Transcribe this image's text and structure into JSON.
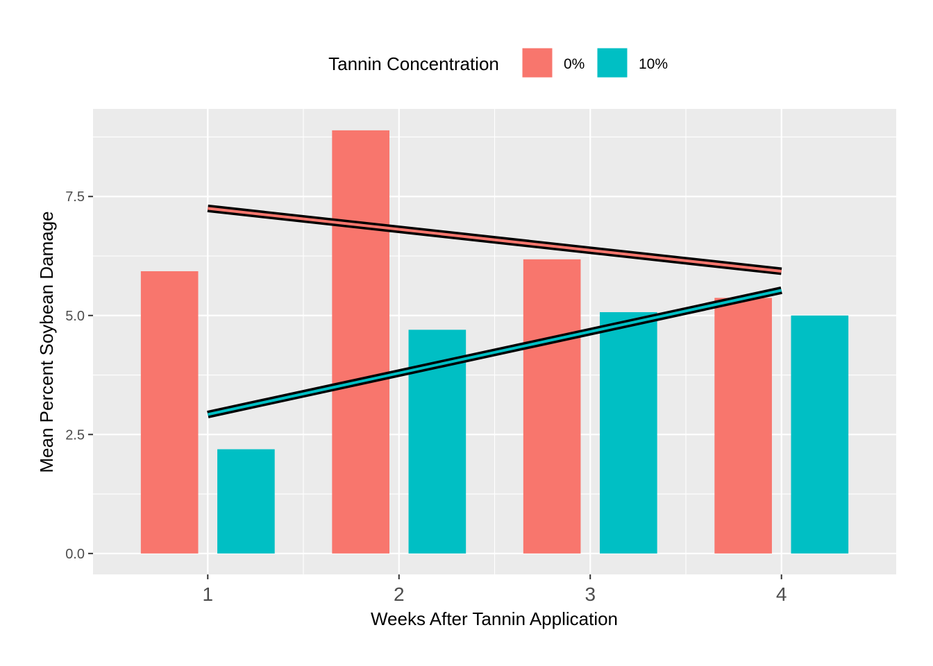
{
  "chart_data": {
    "type": "bar",
    "title": "",
    "xlabel": "Weeks After Tannin Application",
    "ylabel": "Mean Percent Soybean Damage",
    "categories": [
      "1",
      "2",
      "3",
      "4"
    ],
    "x": [
      1,
      2,
      3,
      4
    ],
    "xlim": [
      0.4,
      4.6
    ],
    "ylim": [
      -0.44,
      9.34
    ],
    "yticks": [
      0.0,
      2.5,
      5.0,
      7.5
    ],
    "ytick_labels": [
      "0.0",
      "2.5",
      "5.0",
      "7.5"
    ],
    "xtick_labels": [
      "1",
      "2",
      "3",
      "4"
    ],
    "grid": true,
    "legend": {
      "title": "Tannin Concentration",
      "position": "top"
    },
    "series": [
      {
        "name": "0%",
        "color": "#F8766D",
        "values": [
          5.93,
          8.89,
          6.18,
          5.37
        ],
        "trend": {
          "x": [
            1,
            4
          ],
          "y": [
            7.25,
            5.93
          ]
        }
      },
      {
        "name": "10%",
        "color": "#00BFC4",
        "values": [
          2.19,
          4.7,
          5.07,
          5.0
        ],
        "trend": {
          "x": [
            1,
            4
          ],
          "y": [
            2.92,
            5.53
          ]
        }
      }
    ],
    "colors": {
      "panel": "#EBEBEB",
      "grid_major": "#FFFFFF",
      "axis_text": "#4D4D4D",
      "title_text": "#000000"
    }
  }
}
